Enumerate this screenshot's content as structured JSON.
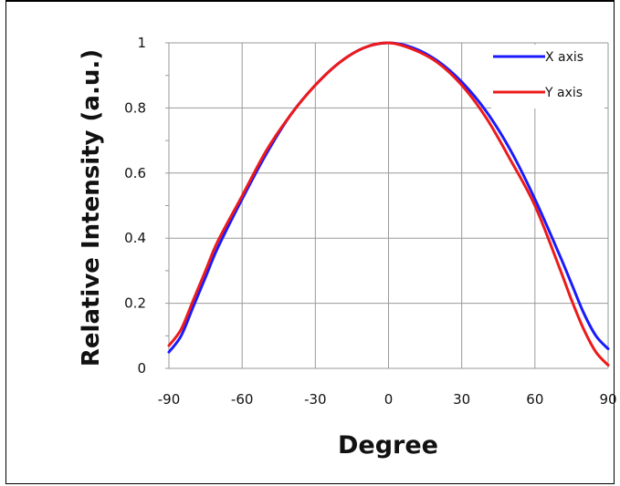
{
  "chart_data": {
    "type": "line",
    "xlabel": "Degree",
    "ylabel": "Relative Intensity (a.u.)",
    "xlim": [
      -90,
      90
    ],
    "ylim": [
      0,
      1
    ],
    "x_ticks": [
      -90,
      -60,
      -30,
      0,
      30,
      60,
      90
    ],
    "y_ticks": [
      0,
      0.2,
      0.4,
      0.6,
      0.8,
      1
    ],
    "y_tick_labels": [
      "0",
      "0.2",
      "0.4",
      "0.6",
      "0.8",
      "1"
    ],
    "grid": true,
    "legend_position": "top-right",
    "series": [
      {
        "name": "X axis",
        "color": "#1a1aff",
        "x": [
          -90,
          -85,
          -80,
          -75,
          -70,
          -60,
          -50,
          -40,
          -30,
          -20,
          -10,
          0,
          10,
          20,
          30,
          40,
          50,
          60,
          70,
          75,
          80,
          85,
          90
        ],
        "y": [
          0.05,
          0.1,
          0.19,
          0.28,
          0.37,
          0.52,
          0.66,
          0.78,
          0.87,
          0.94,
          0.985,
          1.0,
          0.985,
          0.945,
          0.88,
          0.79,
          0.67,
          0.52,
          0.35,
          0.26,
          0.17,
          0.1,
          0.06
        ]
      },
      {
        "name": "Y axis",
        "color": "#ee1a1a",
        "x": [
          -90,
          -85,
          -80,
          -75,
          -70,
          -60,
          -50,
          -40,
          -30,
          -20,
          -10,
          0,
          10,
          20,
          30,
          40,
          50,
          60,
          70,
          75,
          80,
          85,
          90
        ],
        "y": [
          0.07,
          0.12,
          0.21,
          0.3,
          0.39,
          0.53,
          0.67,
          0.78,
          0.87,
          0.94,
          0.985,
          1.0,
          0.98,
          0.94,
          0.87,
          0.77,
          0.64,
          0.5,
          0.31,
          0.21,
          0.12,
          0.05,
          0.01
        ]
      }
    ]
  }
}
